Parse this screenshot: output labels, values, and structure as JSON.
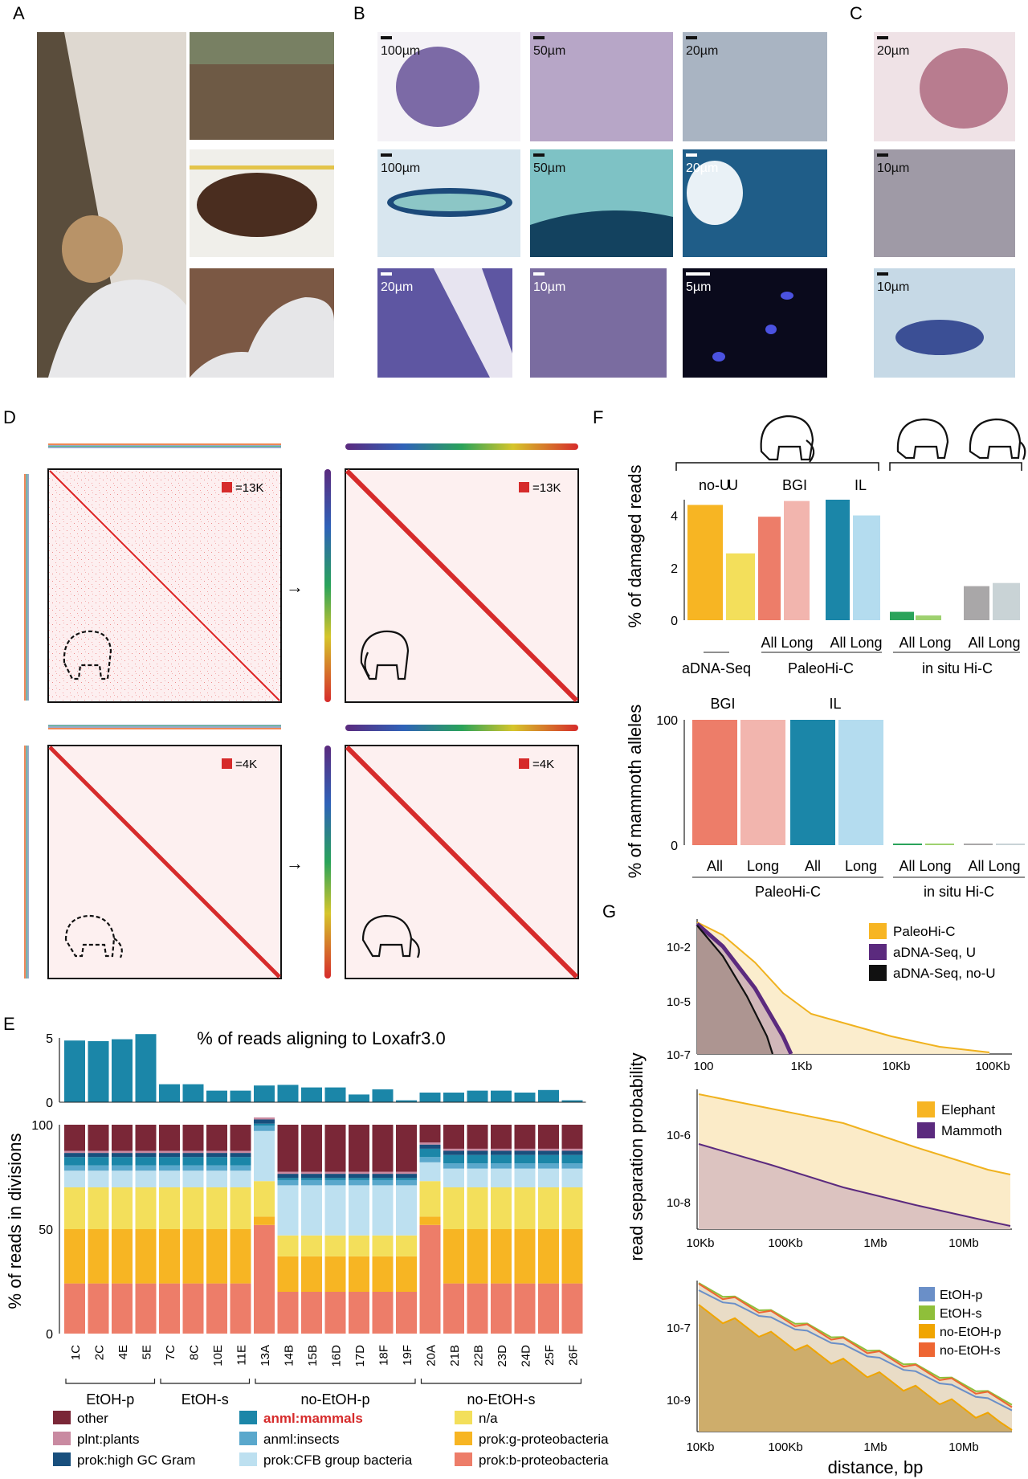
{
  "panels": {
    "A": "A",
    "B": "B",
    "C": "C",
    "D": "D",
    "E": "E",
    "F": "F",
    "G": "G"
  },
  "colors": {
    "orange": "#f7b523",
    "yellow": "#f3df5b",
    "salmon": "#ed7d69",
    "pink": "#f2b5ae",
    "teal": "#1b86a8",
    "lightblue": "#b4dcef",
    "green": "#2aa35a",
    "lightgreen": "#9ed16f",
    "gray": "#a9a7a8",
    "lightgray": "#c9d3d6",
    "purple": "#5b2a7e",
    "black": "#111111",
    "mapred": "#e03a3a",
    "mapbg": "#fdeeee"
  },
  "panelB": {
    "scales": [
      "100µm",
      "50µm",
      "20µm",
      "100µm",
      "50µm",
      "20µm",
      "20µm",
      "10µm",
      "5µm"
    ]
  },
  "panelC": {
    "scales": [
      "20µm",
      "10µm",
      "10µm"
    ]
  },
  "panelD": {
    "maps": [
      {
        "legend": "=13K",
        "animal": "mammoth-dashed-icon",
        "type": "unordered"
      },
      {
        "legend": "=13K",
        "animal": "mammoth-icon",
        "type": "ordered"
      },
      {
        "legend": "=4K",
        "animal": "elephant-dashed-icon",
        "type": "unordered"
      },
      {
        "legend": "=4K",
        "animal": "elephant-icon",
        "type": "ordered"
      }
    ]
  },
  "panelE": {
    "top_title": "% of reads aligning to Loxafr3.0",
    "top_ylim": [
      0,
      5
    ],
    "top_yticks": [
      "0",
      "5"
    ],
    "samples": [
      "1C",
      "2C",
      "4E",
      "5E",
      "7C",
      "8C",
      "10E",
      "11E",
      "13A",
      "14B",
      "15B",
      "16D",
      "17D",
      "18F",
      "19F",
      "20A",
      "21B",
      "22B",
      "23D",
      "24D",
      "25F",
      "26F"
    ],
    "top_values": [
      4.8,
      4.75,
      4.9,
      5.3,
      1.4,
      1.4,
      0.9,
      0.9,
      1.3,
      1.35,
      1.15,
      1.15,
      0.6,
      1.0,
      0.15,
      0.75,
      0.75,
      0.9,
      0.9,
      0.75,
      0.95,
      0.15
    ],
    "ylabel": "% of reads in divisions",
    "yticks": [
      "0",
      "50",
      "100"
    ],
    "groups": [
      {
        "label": "EtOH-p",
        "from": 0,
        "to": 3
      },
      {
        "label": "EtOH-s",
        "from": 4,
        "to": 7
      },
      {
        "label": "no-EtOH-p",
        "from": 8,
        "to": 14
      },
      {
        "label": "no-EtOH-s",
        "from": 15,
        "to": 21
      }
    ],
    "legend": [
      {
        "label": "other",
        "color": "#7a2737"
      },
      {
        "label": "anml:mammals",
        "color": "#1b86a8",
        "highlight": true
      },
      {
        "label": "n/a",
        "color": "#f3df5b"
      },
      {
        "label": "plnt:plants",
        "color": "#c98aa1"
      },
      {
        "label": "anml:insects",
        "color": "#5aa8cc"
      },
      {
        "label": "prok:g-proteobacteria",
        "color": "#f7b523"
      },
      {
        "label": "prok:high GC Gram",
        "color": "#184f7d"
      },
      {
        "label": "prok:CFB group bacteria",
        "color": "#bde0f0"
      },
      {
        "label": "prok:b-proteobacteria",
        "color": "#ed7d69"
      }
    ]
  },
  "panelF": {
    "top_ylabel": "% of damaged reads",
    "top_yticks": [
      "0",
      "2",
      "4"
    ],
    "top_ylim": [
      0,
      4.6
    ],
    "labels_above": [
      "no-U",
      "U",
      "BGI",
      "IL"
    ],
    "top_bars": [
      {
        "value": 4.4,
        "color": "#f7b523"
      },
      {
        "value": 2.55,
        "color": "#f3df5b"
      },
      {
        "value": 3.95,
        "color": "#ed7d69"
      },
      {
        "value": 4.55,
        "color": "#f2b5ae"
      },
      {
        "value": 4.6,
        "color": "#1b86a8"
      },
      {
        "value": 4.0,
        "color": "#b4dcef"
      },
      {
        "value": 0.32,
        "color": "#2aa35a"
      },
      {
        "value": 0.18,
        "color": "#9ed16f"
      },
      {
        "value": 1.3,
        "color": "#a9a7a8"
      },
      {
        "value": 1.42,
        "color": "#c9d3d6"
      }
    ],
    "top_ticklabels": [
      "All Long",
      "All Long",
      "All Long",
      "All Long"
    ],
    "top_groups": [
      "aDNA-Seq",
      "PaleoHi-C",
      "in situ Hi-C"
    ],
    "bottom_ylabel": "% of mammoth alleles",
    "bottom_yticks": [
      "0",
      "100"
    ],
    "bottom_labels_above": [
      "BGI",
      "IL"
    ],
    "bottom_bars": [
      {
        "value": 100,
        "color": "#ed7d69"
      },
      {
        "value": 100,
        "color": "#f2b5ae"
      },
      {
        "value": 100,
        "color": "#1b86a8"
      },
      {
        "value": 100,
        "color": "#b4dcef"
      },
      {
        "value": 1,
        "color": "#2aa35a"
      },
      {
        "value": 1,
        "color": "#9ed16f"
      },
      {
        "value": 1,
        "color": "#a9a7a8"
      },
      {
        "value": 1,
        "color": "#c9d3d6"
      }
    ],
    "bottom_ticklabels": [
      "All",
      "Long",
      "All",
      "Long",
      "All Long",
      "All Long"
    ],
    "bottom_groups": [
      "PaleoHi-C",
      "in situ Hi-C"
    ]
  },
  "panelG": {
    "ylabel": "read separation probability",
    "xlabel": "distance, bp",
    "g1": {
      "xticks": [
        "100",
        "1Kb",
        "10Kb",
        "100Kb"
      ],
      "yticks": [
        "10-2",
        "10-5",
        "10-7"
      ],
      "legend": [
        {
          "label": "PaleoHi-C",
          "color": "#f7b523"
        },
        {
          "label": "aDNA-Seq, U",
          "color": "#5b2a7e"
        },
        {
          "label": "aDNA-Seq, no-U",
          "color": "#111111"
        }
      ]
    },
    "g2": {
      "xticks": [
        "10Kb",
        "100Kb",
        "1Mb",
        "10Mb"
      ],
      "yticks": [
        "10-6",
        "10-8"
      ],
      "legend": [
        {
          "label": "Elephant",
          "color": "#f7b523"
        },
        {
          "label": "Mammoth",
          "color": "#5b2a7e"
        }
      ]
    },
    "g3": {
      "xticks": [
        "10Kb",
        "100Kb",
        "1Mb",
        "10Mb"
      ],
      "yticks": [
        "10-7",
        "10-9"
      ],
      "legend": [
        {
          "label": "EtOH-p",
          "color": "#6a8fc8"
        },
        {
          "label": "EtOH-s",
          "color": "#8fbf3a"
        },
        {
          "label": "no-EtOH-p",
          "color": "#f0a500"
        },
        {
          "label": "no-EtOH-s",
          "color": "#ee6633"
        }
      ]
    }
  }
}
